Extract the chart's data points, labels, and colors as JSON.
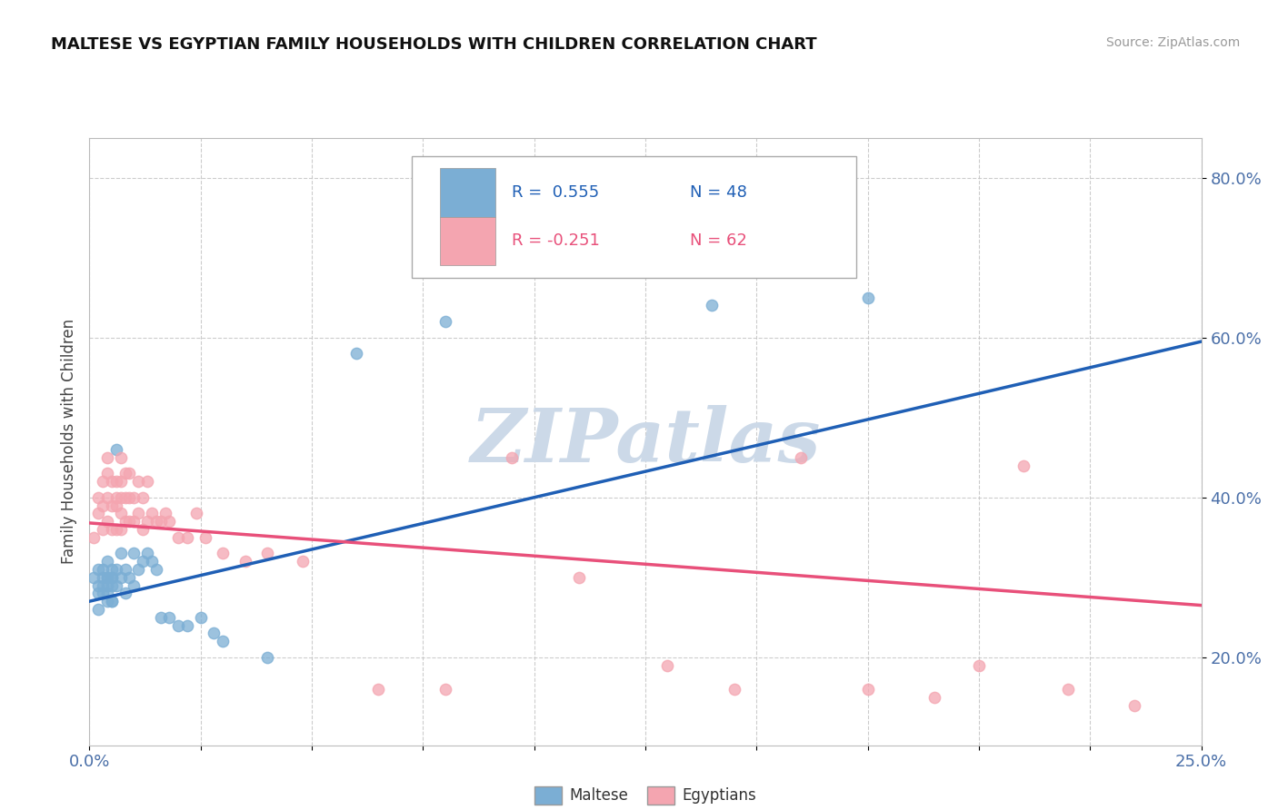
{
  "title": "MALTESE VS EGYPTIAN FAMILY HOUSEHOLDS WITH CHILDREN CORRELATION CHART",
  "source": "Source: ZipAtlas.com",
  "ylabel": "Family Households with Children",
  "xlim": [
    0.0,
    0.25
  ],
  "ylim": [
    0.09,
    0.85
  ],
  "xticks": [
    0.0,
    0.025,
    0.05,
    0.075,
    0.1,
    0.125,
    0.15,
    0.175,
    0.2,
    0.225,
    0.25
  ],
  "yticks": [
    0.2,
    0.4,
    0.6,
    0.8
  ],
  "ytick_labels": [
    "20.0%",
    "40.0%",
    "60.0%",
    "80.0%"
  ],
  "xtick_labels": [
    "0.0%",
    "",
    "",
    "",
    "",
    "",
    "",
    "",
    "",
    "",
    "25.0%"
  ],
  "maltese_color": "#7baed4",
  "egyptian_color": "#f4a5b0",
  "maltese_line_color": "#1f5fb5",
  "egyptian_line_color": "#e8507a",
  "legend_r_maltese": "R =  0.555",
  "legend_n_maltese": "N = 48",
  "legend_r_egyptian": "R = -0.251",
  "legend_n_egyptian": "N = 62",
  "watermark": "ZIPatlas",
  "watermark_color": "#ccd9e8",
  "background_color": "#ffffff",
  "grid_color": "#c0c0c0",
  "maltese_x": [
    0.001,
    0.002,
    0.002,
    0.002,
    0.002,
    0.003,
    0.003,
    0.003,
    0.003,
    0.004,
    0.004,
    0.004,
    0.004,
    0.004,
    0.004,
    0.005,
    0.005,
    0.005,
    0.005,
    0.005,
    0.005,
    0.006,
    0.006,
    0.006,
    0.007,
    0.007,
    0.008,
    0.008,
    0.009,
    0.01,
    0.01,
    0.011,
    0.012,
    0.013,
    0.014,
    0.015,
    0.016,
    0.018,
    0.02,
    0.022,
    0.025,
    0.028,
    0.03,
    0.04,
    0.06,
    0.08,
    0.14,
    0.175
  ],
  "maltese_y": [
    0.3,
    0.28,
    0.31,
    0.29,
    0.26,
    0.3,
    0.29,
    0.31,
    0.28,
    0.3,
    0.28,
    0.3,
    0.32,
    0.29,
    0.27,
    0.3,
    0.27,
    0.3,
    0.31,
    0.29,
    0.27,
    0.31,
    0.29,
    0.46,
    0.3,
    0.33,
    0.28,
    0.31,
    0.3,
    0.29,
    0.33,
    0.31,
    0.32,
    0.33,
    0.32,
    0.31,
    0.25,
    0.25,
    0.24,
    0.24,
    0.25,
    0.23,
    0.22,
    0.2,
    0.58,
    0.62,
    0.64,
    0.65
  ],
  "egyptian_x": [
    0.001,
    0.002,
    0.002,
    0.003,
    0.003,
    0.003,
    0.004,
    0.004,
    0.004,
    0.004,
    0.005,
    0.005,
    0.005,
    0.006,
    0.006,
    0.006,
    0.006,
    0.007,
    0.007,
    0.007,
    0.007,
    0.007,
    0.008,
    0.008,
    0.008,
    0.009,
    0.009,
    0.009,
    0.01,
    0.01,
    0.011,
    0.011,
    0.012,
    0.012,
    0.013,
    0.013,
    0.014,
    0.015,
    0.016,
    0.017,
    0.018,
    0.02,
    0.022,
    0.024,
    0.026,
    0.03,
    0.035,
    0.04,
    0.048,
    0.065,
    0.08,
    0.095,
    0.11,
    0.13,
    0.145,
    0.16,
    0.175,
    0.19,
    0.2,
    0.21,
    0.22,
    0.235
  ],
  "egyptian_y": [
    0.35,
    0.38,
    0.4,
    0.36,
    0.39,
    0.42,
    0.37,
    0.4,
    0.43,
    0.45,
    0.36,
    0.39,
    0.42,
    0.36,
    0.39,
    0.4,
    0.42,
    0.36,
    0.38,
    0.4,
    0.42,
    0.45,
    0.37,
    0.4,
    0.43,
    0.37,
    0.4,
    0.43,
    0.37,
    0.4,
    0.38,
    0.42,
    0.36,
    0.4,
    0.37,
    0.42,
    0.38,
    0.37,
    0.37,
    0.38,
    0.37,
    0.35,
    0.35,
    0.38,
    0.35,
    0.33,
    0.32,
    0.33,
    0.32,
    0.16,
    0.16,
    0.45,
    0.3,
    0.19,
    0.16,
    0.45,
    0.16,
    0.15,
    0.19,
    0.44,
    0.16,
    0.14
  ],
  "maltese_trend": [
    0.27,
    0.595
  ],
  "egyptian_trend": [
    0.368,
    0.265
  ]
}
